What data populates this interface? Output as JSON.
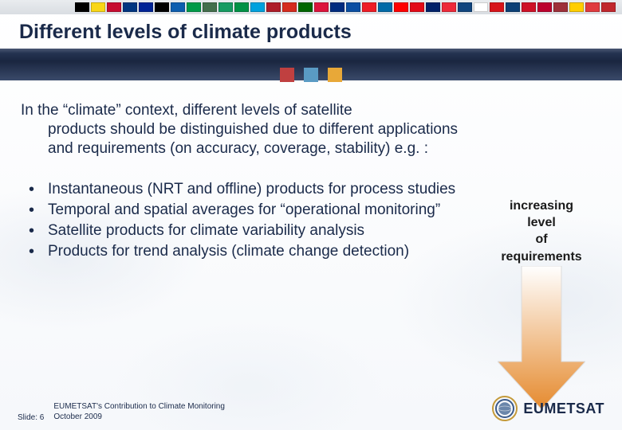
{
  "title": "Different levels of climate products",
  "flags": [
    "#000000",
    "#f9d616",
    "#c60c30",
    "#003580",
    "#002395",
    "#000000",
    "#0d5eaf",
    "#009A49",
    "#436F4D",
    "#169b62",
    "#009246",
    "#00a1de",
    "#ae1c28",
    "#d52b1e",
    "#006600",
    "#dc143c",
    "#002b7f",
    "#0b4ea2",
    "#ee1c25",
    "#006aa7",
    "#ff0000",
    "#e30a17",
    "#012169",
    "#ed2939",
    "#11457e",
    "#ffffff",
    "#d7141a",
    "#0c4076",
    "#ce1126",
    "#bc002d",
    "#9e3039",
    "#ffce00",
    "#e03a3e",
    "#c1272d"
  ],
  "tabs": {
    "colors": [
      "#c04040",
      "#5a9bc4",
      "#e8a838"
    ]
  },
  "intro": {
    "line1": "In the “climate” context, different levels of satellite",
    "rest": "products should be distinguished due to different applications and requirements (on accuracy, coverage, stability) e.g. :"
  },
  "bullets": [
    "Instantaneous (NRT and offline) products for process studies",
    "Temporal and spatial averages for “operational monitoring”",
    "Satellite products for climate variability analysis",
    "Products for trend analysis (climate change detection)"
  ],
  "arrow": {
    "label_lines": [
      "increasing",
      "level",
      "of",
      "requirements"
    ],
    "gradient_top": "#ffffff",
    "gradient_bottom": "#e58a2e",
    "stroke": "#dcdcdc",
    "width": 110,
    "height": 180
  },
  "footer": {
    "slide_label": "Slide: 6",
    "meta_line1": "EUMETSAT's Contribution to Climate Monitoring",
    "meta_line2": "October 2009"
  },
  "logo": {
    "text": "EUMETSAT",
    "ring_outer": "#c49a3a",
    "ring_inner": "#3a5a8a",
    "globe": "#6a86aa"
  }
}
